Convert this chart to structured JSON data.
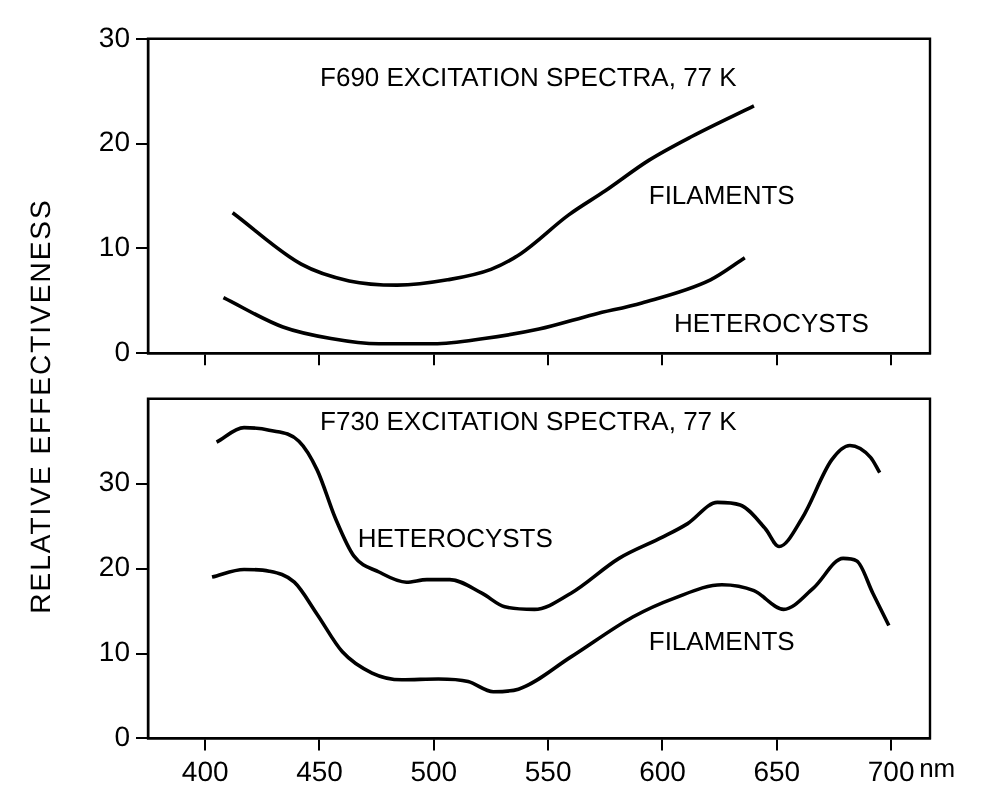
{
  "chart_data": [
    {
      "type": "line",
      "title": "F690 EXCITATION SPECTRA, 77 K",
      "xlim": [
        375,
        717
      ],
      "xticks": [
        400,
        450,
        500,
        550,
        600,
        650,
        700
      ],
      "ylim": [
        0,
        30
      ],
      "yticks": [
        0,
        10,
        20,
        30
      ],
      "tick_labels": "y",
      "grid": false,
      "legend": false,
      "series": [
        {
          "name": "FILAMENTS",
          "color": "#000000",
          "x": [
            412,
            442,
            463,
            484,
            506,
            525,
            538,
            559,
            575,
            594,
            613,
            640
          ],
          "values": [
            13.4,
            8.5,
            6.9,
            6.5,
            7.0,
            8.0,
            9.5,
            13.2,
            15.5,
            18.4,
            20.7,
            23.6
          ]
        },
        {
          "name": "HETEROCYSTS",
          "color": "#000000",
          "x": [
            408,
            434,
            455,
            476,
            500,
            522,
            546,
            570,
            591,
            621,
            636
          ],
          "values": [
            5.3,
            2.5,
            1.4,
            0.9,
            0.9,
            1.4,
            2.3,
            3.7,
            4.8,
            7.0,
            9.1
          ]
        }
      ]
    },
    {
      "type": "line",
      "title": "F730 EXCITATION SPECTRA, 77 K",
      "xlabel": "nm",
      "ylabel": "RELATIVE EFFECTIVENESS",
      "xlim": [
        375,
        717
      ],
      "xticks": [
        400,
        450,
        500,
        550,
        600,
        650,
        700
      ],
      "ylim": [
        0,
        40
      ],
      "yticks": [
        0,
        10,
        20,
        30
      ],
      "grid": false,
      "legend": false,
      "series": [
        {
          "name": "HETEROCYSTS",
          "color": "#000000",
          "x": [
            405,
            417,
            428,
            441,
            449,
            457,
            465,
            476,
            488,
            497,
            507,
            521,
            531,
            544,
            560,
            581,
            600,
            611,
            624,
            634,
            645,
            651,
            661,
            674,
            682,
            691,
            695
          ],
          "values": [
            34.9,
            36.6,
            36.3,
            35,
            31.6,
            25.9,
            21.5,
            19.6,
            18.4,
            18.7,
            18.7,
            17.1,
            15.5,
            15.2,
            17.1,
            21.2,
            23.7,
            25.3,
            27.8,
            27.5,
            24.7,
            22.6,
            25.9,
            32.8,
            34.5,
            33.1,
            31.3
          ]
        },
        {
          "name": "FILAMENTS",
          "color": "#000000",
          "x": [
            403,
            417,
            428,
            439,
            449,
            460,
            473,
            486,
            502,
            515,
            526,
            537,
            560,
            587,
            605,
            626,
            640,
            653,
            666,
            679,
            685,
            692,
            699
          ],
          "values": [
            19,
            19.9,
            19.7,
            18.4,
            14.6,
            10.2,
            7.7,
            6.9,
            7.0,
            6.7,
            5.5,
            5.8,
            9.6,
            14.3,
            16.5,
            18.1,
            17.4,
            15.2,
            17.7,
            21.2,
            20.9,
            17.1,
            13.3
          ]
        }
      ]
    }
  ]
}
